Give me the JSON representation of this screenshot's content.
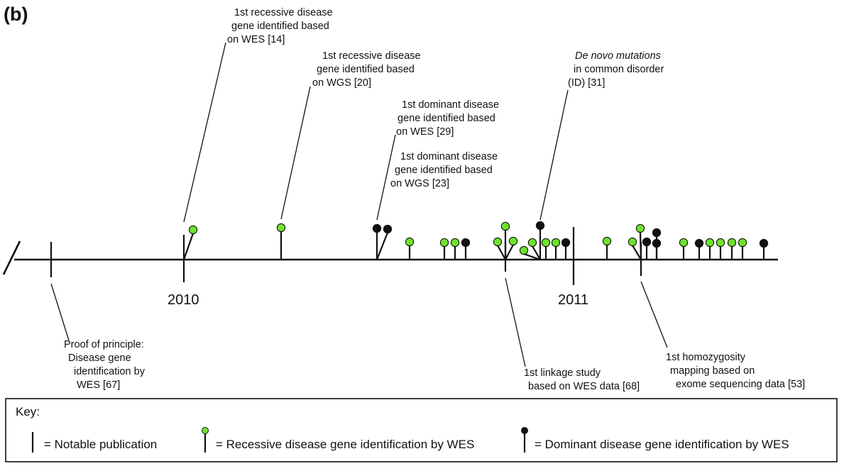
{
  "panel_label": "(b)",
  "years": [
    "2010",
    "2011"
  ],
  "annotations": [
    {
      "id": "ann-wes-recessive",
      "lines": [
        "1st recessive disease",
        "gene identified based",
        "on WES [14]"
      ]
    },
    {
      "id": "ann-wgs-recessive",
      "lines": [
        "1st recessive disease",
        "gene identified based",
        "on WGS [20]"
      ]
    },
    {
      "id": "ann-wes-dominant",
      "lines": [
        "1st dominant disease",
        "gene identified based",
        "on WES [29]"
      ]
    },
    {
      "id": "ann-wgs-dominant",
      "lines": [
        "1st dominant disease",
        "gene identified based",
        "on WGS [23]"
      ]
    },
    {
      "id": "ann-de-novo",
      "lines": [
        "De novo mutations",
        "in common disorder",
        "(ID) [31]"
      ]
    },
    {
      "id": "ann-proof",
      "lines": [
        "Proof of principle:",
        "Disease gene",
        "identification by",
        "WES [67]"
      ]
    },
    {
      "id": "ann-linkage",
      "lines": [
        "1st linkage study",
        "based on WES data [68]"
      ]
    },
    {
      "id": "ann-homozygosity",
      "lines": [
        "1st homozygosity",
        "mapping based on",
        "exome sequencing data [53]"
      ]
    }
  ],
  "key": {
    "title": "Key:",
    "notable": "= Notable publication",
    "recessive": "= Recessive disease gene identification by WES",
    "dominant": "= Dominant disease gene identification by WES"
  },
  "colors": {
    "recessive": "#6ee32d",
    "dominant": "#111111",
    "line": "#111111"
  }
}
